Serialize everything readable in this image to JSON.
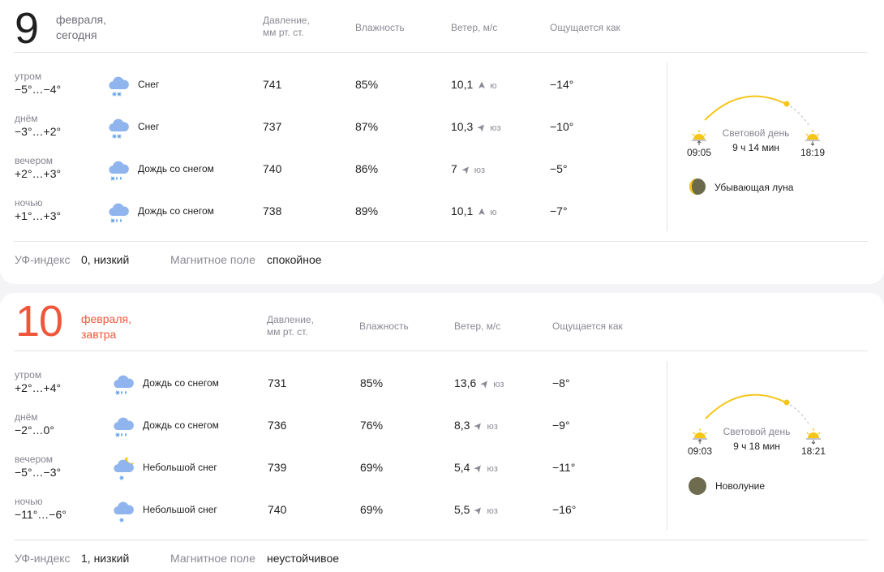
{
  "columns": {
    "pressure": "Давление,",
    "pressure_unit": "мм рт. ст.",
    "humidity": "Влажность",
    "wind": "Ветер, м/с",
    "feels": "Ощущается как"
  },
  "days": [
    {
      "day_number": "9",
      "month": "февраля,",
      "relative": "сегодня",
      "parts": [
        {
          "name": "утром",
          "temp": "−5°…−4°",
          "icon": "snow-cloud-icon",
          "condition": "Снег",
          "pressure": "741",
          "humidity": "85%",
          "wind_speed": "10,1",
          "wind_dir": "ю",
          "feels": "−14°"
        },
        {
          "name": "днём",
          "temp": "−3°…+2°",
          "icon": "snow-cloud-icon",
          "condition": "Снег",
          "pressure": "737",
          "humidity": "87%",
          "wind_speed": "10,3",
          "wind_dir": "юз",
          "feels": "−10°"
        },
        {
          "name": "вечером",
          "temp": "+2°…+3°",
          "icon": "sleet-cloud-icon",
          "condition": "Дождь со снегом",
          "pressure": "740",
          "humidity": "86%",
          "wind_speed": "7",
          "wind_dir": "юз",
          "feels": "−5°"
        },
        {
          "name": "ночью",
          "temp": "+1°…+3°",
          "icon": "sleet-cloud-icon",
          "condition": "Дождь со снегом",
          "pressure": "738",
          "humidity": "89%",
          "wind_speed": "10,1",
          "wind_dir": "ю",
          "feels": "−7°"
        }
      ],
      "sun": {
        "daylight_label": "Световой день",
        "daylight_duration": "9 ч 14 мин",
        "sunrise": "09:05",
        "sunset": "18:19"
      },
      "moon": {
        "phase": "Убывающая луна",
        "color": "#6b6a4c"
      },
      "uv_label": "УФ-индекс",
      "uv_value": "0, низкий",
      "magnetic_label": "Магнитное поле",
      "magnetic_value": "спокойное"
    },
    {
      "day_number": "10",
      "month": "февраля,",
      "relative": "завтра",
      "parts": [
        {
          "name": "утром",
          "temp": "+2°…+4°",
          "icon": "sleet-cloud-icon",
          "condition": "Дождь со снегом",
          "pressure": "731",
          "humidity": "85%",
          "wind_speed": "13,6",
          "wind_dir": "юз",
          "feels": "−8°"
        },
        {
          "name": "днём",
          "temp": "−2°…0°",
          "icon": "sleet-cloud-icon",
          "condition": "Дождь со снегом",
          "pressure": "736",
          "humidity": "76%",
          "wind_speed": "8,3",
          "wind_dir": "юз",
          "feels": "−9°"
        },
        {
          "name": "вечером",
          "temp": "−5°…−3°",
          "icon": "light-snow-moon-cloud-icon",
          "condition": "Небольшой снег",
          "pressure": "739",
          "humidity": "69%",
          "wind_speed": "5,4",
          "wind_dir": "юз",
          "feels": "−11°"
        },
        {
          "name": "ночью",
          "temp": "−11°…−6°",
          "icon": "light-snow-cloud-icon",
          "condition": "Небольшой снег",
          "pressure": "740",
          "humidity": "69%",
          "wind_speed": "5,5",
          "wind_dir": "юз",
          "feels": "−16°"
        }
      ],
      "sun": {
        "daylight_label": "Световой день",
        "daylight_duration": "9 ч 18 мин",
        "sunrise": "09:03",
        "sunset": "18:21"
      },
      "moon": {
        "phase": "Новолуние",
        "color": "#6e6b4f"
      },
      "uv_label": "УФ-индекс",
      "uv_value": "1, низкий",
      "magnetic_label": "Магнитное поле",
      "magnetic_value": "неустойчивое"
    }
  ],
  "colors": {
    "accent_red": "#f0573a",
    "sun_yellow": "#f5c518",
    "cloud_blue": "#8fb4ee",
    "snow_blue": "#5d9ee8"
  }
}
